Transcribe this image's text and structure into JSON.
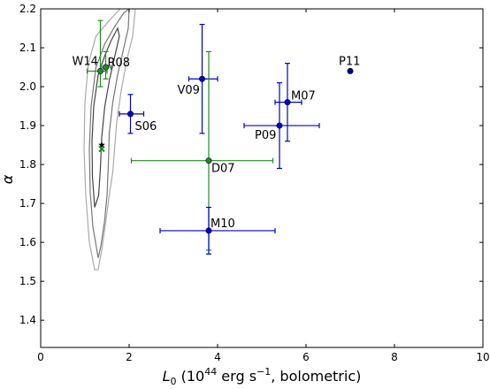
{
  "chart_data": {
    "type": "scatter",
    "xlim": [
      0,
      10
    ],
    "ylim": [
      1.33,
      2.2
    ],
    "xticks": [
      "0",
      "2",
      "4",
      "6",
      "8",
      "10"
    ],
    "yticks": [
      "1.4",
      "1.5",
      "1.6",
      "1.7",
      "1.8",
      "1.9",
      "2.0",
      "2.1",
      "2.2"
    ],
    "xlabel": {
      "symbol": "L",
      "sub": "0",
      "open": " (10",
      "exp": "44",
      "mid": " erg s",
      "exp2": "−1",
      "close": ", bolometric)"
    },
    "ylabel": "α",
    "grid": false,
    "colors": {
      "blue": "#0000cc",
      "green": "#228b22",
      "navy": "#000080",
      "contour_dark": "#444444",
      "contour_mid": "#777777",
      "contour_light": "#aaaaaa"
    },
    "points": [
      {
        "label": "W14",
        "x": 1.35,
        "y": 2.04,
        "xerr": [
          0.3,
          0.15
        ],
        "yerr": [
          0.04,
          0.13
        ],
        "color": "green"
      },
      {
        "label": "R08",
        "x": 1.47,
        "y": 2.05,
        "xerr": [
          0.12,
          0.12
        ],
        "yerr": [
          0.03,
          0.04
        ],
        "color": "green"
      },
      {
        "label": "S06",
        "x": 2.03,
        "y": 1.93,
        "xerr": [
          0.25,
          0.3
        ],
        "yerr": [
          0.05,
          0.05
        ],
        "color": "blue"
      },
      {
        "label": "V09",
        "x": 3.65,
        "y": 2.02,
        "xerr": [
          0.3,
          0.35
        ],
        "yerr": [
          0.14,
          0.14
        ],
        "color": "blue"
      },
      {
        "label": "D07",
        "x": 3.8,
        "y": 1.81,
        "xerr": [
          1.75,
          1.45
        ],
        "yerr": [
          0.23,
          0.28
        ],
        "color": "green"
      },
      {
        "label": "M07",
        "x": 5.58,
        "y": 1.96,
        "xerr": [
          0.28,
          0.32
        ],
        "yerr": [
          0.1,
          0.1
        ],
        "color": "blue"
      },
      {
        "label": "P09",
        "x": 5.4,
        "y": 1.9,
        "xerr": [
          0.8,
          0.9
        ],
        "yerr": [
          0.11,
          0.11
        ],
        "color": "blue"
      },
      {
        "label": "M10",
        "x": 3.8,
        "y": 1.63,
        "xerr": [
          1.1,
          1.5
        ],
        "yerr": [
          0.06,
          0.06
        ],
        "color": "blue"
      },
      {
        "label": "P11",
        "x": 7.0,
        "y": 2.04,
        "xerr": [
          0,
          0
        ],
        "yerr": [
          0,
          0
        ],
        "color": "navy"
      }
    ],
    "markers": [
      {
        "shape": "star",
        "x": 1.38,
        "y": 1.85,
        "color": "#000000"
      },
      {
        "shape": "cross",
        "x": 1.38,
        "y": 1.84,
        "color": "green"
      }
    ],
    "contours": {
      "light": [
        [
          1.22,
          1.53
        ],
        [
          1.1,
          1.6
        ],
        [
          1.02,
          1.72
        ],
        [
          0.98,
          1.84
        ],
        [
          1.0,
          1.96
        ],
        [
          1.08,
          2.06
        ],
        [
          1.25,
          2.13
        ],
        [
          1.55,
          2.17
        ],
        [
          1.8,
          2.2
        ],
        [
          2.02,
          2.25
        ],
        [
          2.14,
          2.2
        ],
        [
          2.08,
          2.13
        ],
        [
          1.95,
          2.07
        ],
        [
          1.82,
          1.99
        ],
        [
          1.72,
          1.91
        ],
        [
          1.67,
          1.84
        ],
        [
          1.63,
          1.78
        ],
        [
          1.56,
          1.73
        ],
        [
          1.48,
          1.66
        ],
        [
          1.38,
          1.58
        ],
        [
          1.3,
          1.53
        ],
        [
          1.22,
          1.53
        ]
      ],
      "mid": [
        [
          1.3,
          1.56
        ],
        [
          1.18,
          1.64
        ],
        [
          1.12,
          1.73
        ],
        [
          1.1,
          1.84
        ],
        [
          1.14,
          1.95
        ],
        [
          1.25,
          2.05
        ],
        [
          1.45,
          2.11
        ],
        [
          1.65,
          2.15
        ],
        [
          1.88,
          2.19
        ],
        [
          2.0,
          2.2
        ],
        [
          1.98,
          2.15
        ],
        [
          1.86,
          2.09
        ],
        [
          1.74,
          2.03
        ],
        [
          1.63,
          1.96
        ],
        [
          1.55,
          1.88
        ],
        [
          1.53,
          1.8
        ],
        [
          1.5,
          1.72
        ],
        [
          1.44,
          1.65
        ],
        [
          1.36,
          1.59
        ],
        [
          1.3,
          1.56
        ]
      ],
      "dark": [
        [
          1.22,
          1.69
        ],
        [
          1.17,
          1.77
        ],
        [
          1.16,
          1.86
        ],
        [
          1.2,
          1.95
        ],
        [
          1.3,
          2.03
        ],
        [
          1.45,
          2.08
        ],
        [
          1.6,
          2.12
        ],
        [
          1.74,
          2.15
        ],
        [
          1.78,
          2.13
        ],
        [
          1.68,
          2.08
        ],
        [
          1.56,
          2.02
        ],
        [
          1.45,
          1.95
        ],
        [
          1.38,
          1.87
        ],
        [
          1.35,
          1.79
        ],
        [
          1.31,
          1.72
        ],
        [
          1.22,
          1.69
        ]
      ]
    }
  }
}
